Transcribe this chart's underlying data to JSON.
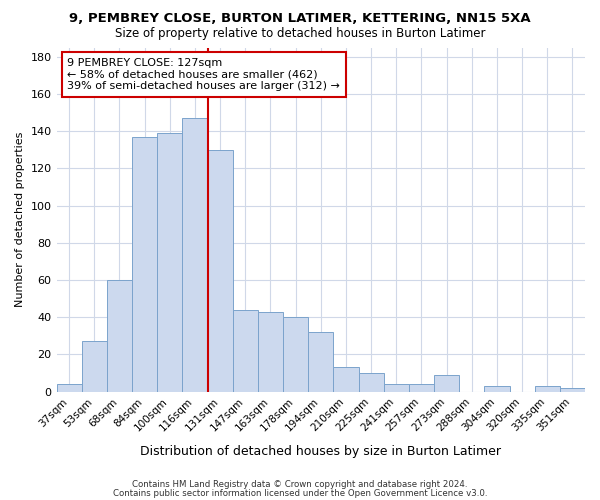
{
  "title": "9, PEMBREY CLOSE, BURTON LATIMER, KETTERING, NN15 5XA",
  "subtitle": "Size of property relative to detached houses in Burton Latimer",
  "xlabel": "Distribution of detached houses by size in Burton Latimer",
  "ylabel": "Number of detached properties",
  "categories": [
    "37sqm",
    "53sqm",
    "68sqm",
    "84sqm",
    "100sqm",
    "116sqm",
    "131sqm",
    "147sqm",
    "163sqm",
    "178sqm",
    "194sqm",
    "210sqm",
    "225sqm",
    "241sqm",
    "257sqm",
    "273sqm",
    "288sqm",
    "304sqm",
    "320sqm",
    "335sqm",
    "351sqm"
  ],
  "values": [
    4,
    27,
    60,
    137,
    139,
    147,
    130,
    44,
    43,
    40,
    32,
    13,
    10,
    4,
    4,
    9,
    0,
    3,
    0,
    3,
    2
  ],
  "bar_color": "#ccd9ee",
  "bar_edge_color": "#7ba3cc",
  "red_line_x": 6,
  "annotation_title": "9 PEMBREY CLOSE: 127sqm",
  "annotation_line1": "← 58% of detached houses are smaller (462)",
  "annotation_line2": "39% of semi-detached houses are larger (312) →",
  "annotation_box_color": "#ffffff",
  "annotation_box_edge": "#cc0000",
  "footnote1": "Contains HM Land Registry data © Crown copyright and database right 2024.",
  "footnote2": "Contains public sector information licensed under the Open Government Licence v3.0.",
  "bg_color": "#ffffff",
  "ylim": [
    0,
    185
  ],
  "yticks": [
    0,
    20,
    40,
    60,
    80,
    100,
    120,
    140,
    160,
    180
  ]
}
